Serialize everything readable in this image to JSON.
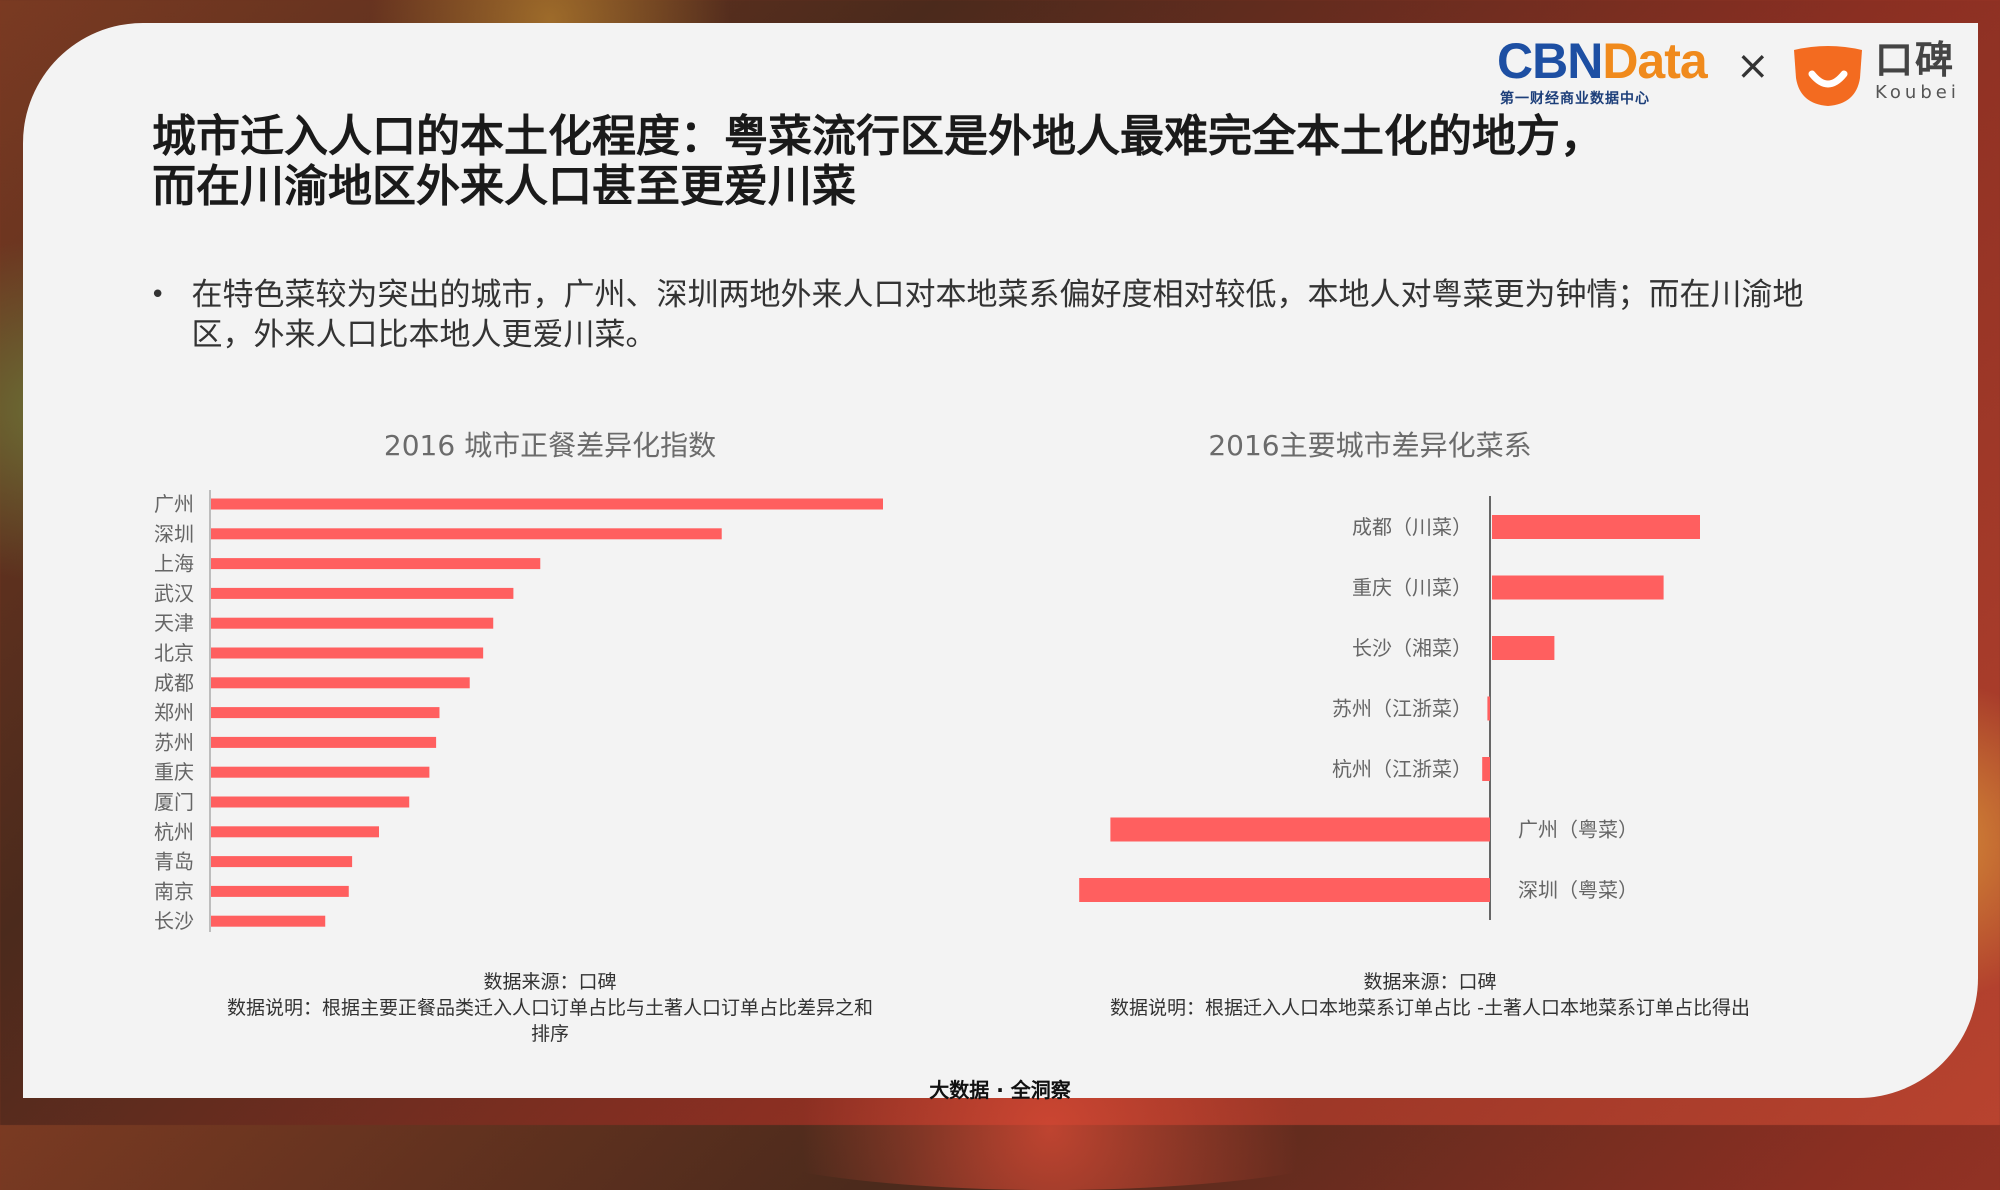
{
  "header": {
    "brand_left": {
      "cbn": "CBN",
      "data": "Data",
      "sub": "第一财经商业数据中心"
    },
    "times_symbol": "×",
    "brand_right": {
      "cn": "口碑",
      "en": "Koubei"
    }
  },
  "title_lines": [
    "城市迁入人口的本土化程度：粤菜流行区是外地人最难完全本土化的地方，",
    "而在川渝地区外来人口甚至更爱川菜"
  ],
  "bullet": {
    "symbol": "•",
    "text": "在特色菜较为突出的城市，广州、深圳两地外来人口对本地菜系偏好度相对较低，本地人对粤菜更为钟情；而在川渝地区，外来人口比本地人更爱川菜。"
  },
  "chart_data": [
    {
      "type": "bar",
      "orientation": "horizontal",
      "title": "2016 城市正餐差异化指数",
      "categories": [
        "广州",
        "深圳",
        "上海",
        "武汉",
        "天津",
        "北京",
        "成都",
        "郑州",
        "苏州",
        "重庆",
        "厦门",
        "杭州",
        "青岛",
        "南京",
        "长沙"
      ],
      "values": [
        100,
        76,
        49,
        45,
        42,
        40.5,
        38.5,
        34,
        33.5,
        32.5,
        29.5,
        25,
        21,
        20.5,
        17
      ],
      "xlim": [
        0,
        100
      ],
      "color": "#ff5f5f",
      "source": "数据来源：口碑",
      "note": "数据说明：根据主要正餐品类迁入人口订单占比与土著人口订单占比差异之和排序"
    },
    {
      "type": "bar",
      "orientation": "horizontal",
      "title": "2016主要城市差异化菜系",
      "categories": [
        "成都（川菜）",
        "重庆（川菜）",
        "长沙（湘菜）",
        "苏州（江浙菜）",
        "杭州（江浙菜）",
        "广州（粤菜）",
        "深圳（粤菜）"
      ],
      "values": [
        4.0,
        3.3,
        1.2,
        -0.05,
        -0.15,
        -7.3,
        -7.9
      ],
      "xlim": [
        -8,
        4
      ],
      "color": "#ff5f5f",
      "source": "数据来源：口碑",
      "note": "数据说明：根据迁入人口本地菜系订单占比 -土著人口本地菜系订单占比得出"
    }
  ],
  "footer": "大数据 · 全洞察"
}
